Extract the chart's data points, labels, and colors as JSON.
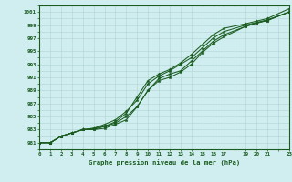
{
  "title": "Graphe pression niveau de la mer (hPa)",
  "bg_color": "#d0eef0",
  "grid_color": "#b0d4d4",
  "line_color": "#1a5c20",
  "text_color": "#1a5c20",
  "xlim": [
    0,
    23
  ],
  "ylim": [
    980.5,
    1002
  ],
  "xtick_vals": [
    0,
    1,
    2,
    3,
    4,
    5,
    6,
    7,
    8,
    9,
    10,
    11,
    12,
    13,
    14,
    15,
    16,
    17,
    19,
    20,
    21,
    23
  ],
  "ytick_vals": [
    981,
    983,
    985,
    987,
    989,
    991,
    993,
    995,
    997,
    999,
    1001
  ],
  "lines": [
    {
      "x": [
        0,
        1,
        2,
        3,
        4,
        5,
        6,
        7,
        8,
        9,
        10,
        11,
        12,
        13,
        14,
        15,
        16,
        17,
        19,
        20,
        21,
        23
      ],
      "y": [
        981,
        981,
        982,
        982.5,
        983,
        983.2,
        983.5,
        984.2,
        985.5,
        988,
        990.5,
        991.5,
        992.2,
        993.2,
        994.5,
        996,
        997.5,
        998.5,
        999.2,
        999.6,
        1000,
        1001.5
      ]
    },
    {
      "x": [
        0,
        1,
        2,
        3,
        4,
        5,
        6,
        7,
        8,
        9,
        10,
        11,
        12,
        13,
        14,
        15,
        16,
        17,
        19,
        20,
        21,
        23
      ],
      "y": [
        981,
        981,
        982,
        982.5,
        983,
        983.2,
        983.8,
        984.5,
        985.8,
        987.5,
        990,
        991.2,
        992,
        993,
        994,
        995.5,
        997,
        998,
        999,
        999.4,
        999.8,
        1001
      ]
    },
    {
      "x": [
        0,
        1,
        2,
        3,
        4,
        5,
        6,
        7,
        8,
        9,
        10,
        11,
        12,
        13,
        14,
        15,
        16,
        17,
        19,
        20,
        21,
        23
      ],
      "y": [
        981,
        981,
        982,
        982.5,
        983,
        983.0,
        983.5,
        984.0,
        985.0,
        986.5,
        989,
        990.8,
        991.5,
        992.0,
        993.5,
        995.0,
        996.5,
        997.5,
        998.8,
        999.3,
        999.7,
        1001
      ]
    },
    {
      "x": [
        0,
        1,
        2,
        3,
        4,
        5,
        6,
        7,
        8,
        9,
        10,
        11,
        12,
        13,
        14,
        15,
        16,
        17,
        19,
        20,
        21,
        23
      ],
      "y": [
        981,
        981,
        982,
        982.5,
        983,
        983.0,
        983.2,
        983.8,
        984.5,
        986.5,
        989.0,
        990.5,
        991.0,
        991.8,
        993.0,
        994.8,
        996.2,
        997.2,
        998.8,
        999.3,
        999.7,
        1001
      ]
    }
  ]
}
